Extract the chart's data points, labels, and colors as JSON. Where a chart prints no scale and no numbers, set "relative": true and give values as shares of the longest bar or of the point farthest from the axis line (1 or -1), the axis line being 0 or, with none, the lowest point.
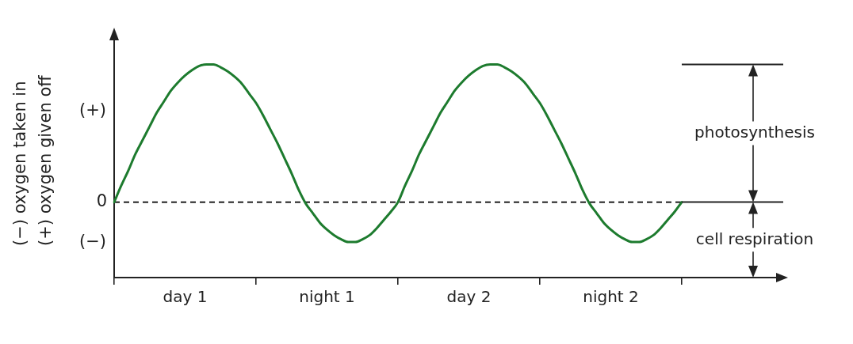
{
  "chart_data": {
    "type": "line",
    "relative": true,
    "ylabel": "(−) oxygen taken in\n(+) oxygen given off",
    "categories": [
      null,
      null,
      null,
      null,
      null,
      null,
      null,
      null,
      null,
      null,
      "day 1",
      null,
      null,
      null,
      null,
      null,
      null,
      null,
      null,
      null,
      null,
      null,
      null,
      null,
      null,
      null,
      null,
      null,
      null,
      null,
      "night 1",
      null,
      null,
      null,
      null,
      null,
      null,
      null,
      null,
      null,
      null,
      null,
      null,
      null,
      null,
      null,
      null,
      null,
      null,
      null,
      "day 2",
      null,
      null,
      null,
      null,
      null,
      null,
      null,
      null,
      null,
      null,
      null,
      null,
      null,
      null,
      null,
      null,
      null,
      null,
      null,
      "night 2",
      null,
      null,
      null,
      null,
      null,
      null,
      null,
      null,
      null,
      null
    ],
    "series": [
      {
        "color": "#1d7b2e",
        "values": [
          0,
          0.12,
          0.23,
          0.35,
          0.45,
          0.55,
          0.65,
          0.73,
          0.81,
          0.87,
          0.92,
          0.96,
          0.99,
          1,
          1,
          0.98,
          0.95,
          0.91,
          0.86,
          0.79,
          0.72,
          0.63,
          0.53,
          0.43,
          0.32,
          0.21,
          0.09,
          -0.01,
          -0.08,
          -0.15,
          -0.2,
          -0.24,
          -0.27,
          -0.29,
          -0.29,
          -0.27,
          -0.24,
          -0.19,
          -0.13,
          -0.07,
          0,
          0.12,
          0.23,
          0.35,
          0.45,
          0.55,
          0.65,
          0.73,
          0.81,
          0.87,
          0.92,
          0.96,
          0.99,
          1,
          1,
          0.98,
          0.95,
          0.91,
          0.86,
          0.79,
          0.72,
          0.63,
          0.53,
          0.43,
          0.32,
          0.21,
          0.09,
          -0.01,
          -0.08,
          -0.15,
          -0.2,
          -0.24,
          -0.27,
          -0.29,
          -0.29,
          -0.27,
          -0.24,
          -0.19,
          -0.13,
          -0.07,
          0
        ]
      }
    ],
    "ref_lines": [
      {
        "axis": "y",
        "value": 0,
        "label": "0",
        "line_style": "dashed",
        "color": "#000000"
      }
    ],
    "annotations": [
      "(+)",
      "(−)",
      "photosynthesis",
      "cell respiration"
    ]
  }
}
